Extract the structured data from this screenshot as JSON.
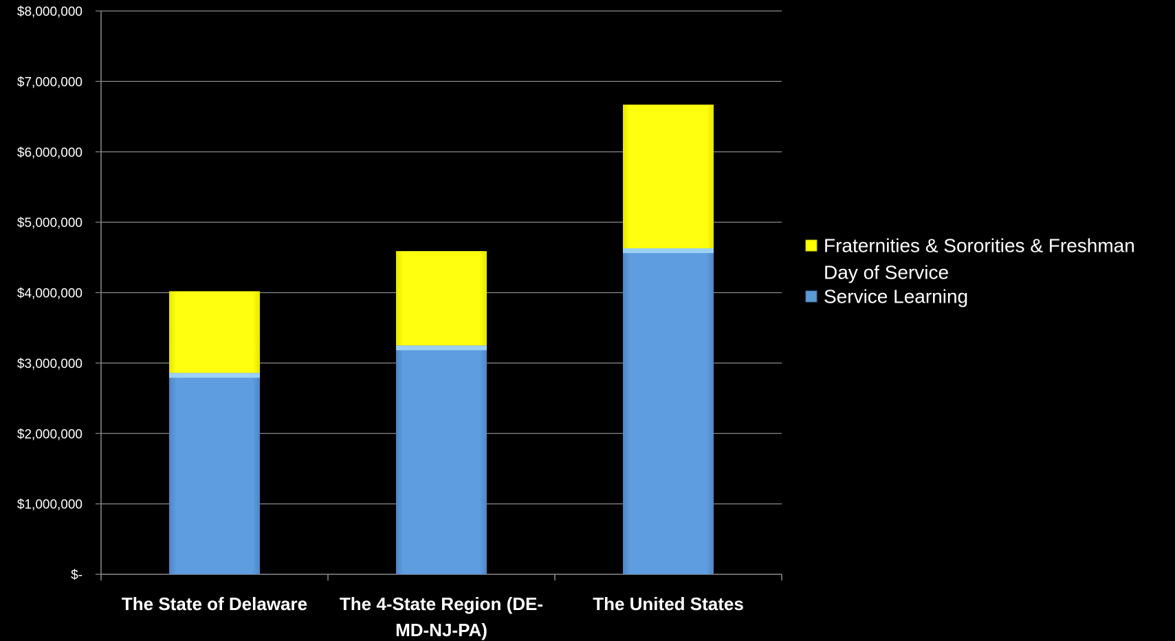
{
  "chart_data": {
    "type": "bar",
    "stacked": true,
    "title": "",
    "xlabel": "",
    "ylabel": "",
    "categories": [
      [
        "The State of Delaware"
      ],
      [
        "The 4-State Region (DE-",
        "MD-NJ-PA)"
      ],
      [
        "The United States"
      ]
    ],
    "series": [
      {
        "name": "Service Learning",
        "color": "#5b9bd5",
        "values": [
          2860000,
          3250000,
          4630000
        ]
      },
      {
        "name": "Fraternities & Sororities & Freshman Day of Service",
        "legend_lines": [
          "Fraternities & Sororities & Freshman",
          "Day of Service"
        ],
        "color": "#ffff00",
        "values": [
          1160000,
          1340000,
          2040000
        ]
      }
    ],
    "ylim": [
      0,
      8000000
    ],
    "ytick_values": [
      0,
      1000000,
      2000000,
      3000000,
      4000000,
      5000000,
      6000000,
      7000000,
      8000000
    ],
    "ytick_labels": [
      "$-",
      "$1,000,000",
      "$2,000,000",
      "$3,000,000",
      "$4,000,000",
      "$5,000,000",
      "$6,000,000",
      "$7,000,000",
      "$8,000,000"
    ],
    "grid": true,
    "legend_position": "right",
    "legend_order": [
      1,
      0
    ]
  }
}
